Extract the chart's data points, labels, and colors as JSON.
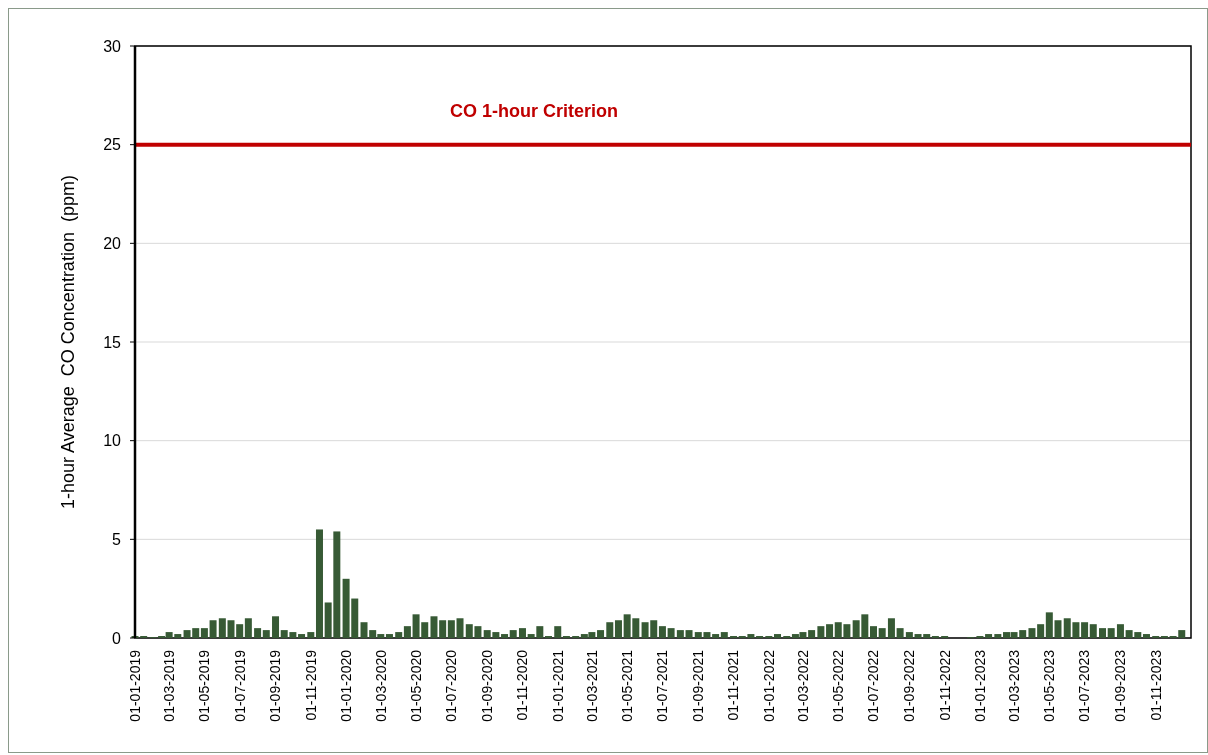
{
  "chart_data": {
    "type": "bar",
    "ylabel": "1-hour Average  CO Concentration  (ppm)",
    "x": [
      "2019-01-01",
      "2019-01-16",
      "2019-02-01",
      "2019-02-16",
      "2019-03-01",
      "2019-03-16",
      "2019-04-01",
      "2019-04-16",
      "2019-05-01",
      "2019-05-16",
      "2019-06-01",
      "2019-06-16",
      "2019-07-01",
      "2019-07-16",
      "2019-08-01",
      "2019-08-16",
      "2019-09-01",
      "2019-09-16",
      "2019-10-01",
      "2019-10-16",
      "2019-11-01",
      "2019-11-16",
      "2019-12-01",
      "2019-12-16",
      "2020-01-01",
      "2020-01-16",
      "2020-02-01",
      "2020-02-16",
      "2020-03-01",
      "2020-03-16",
      "2020-04-01",
      "2020-04-16",
      "2020-05-01",
      "2020-05-16",
      "2020-06-01",
      "2020-06-16",
      "2020-07-01",
      "2020-07-16",
      "2020-08-01",
      "2020-08-16",
      "2020-09-01",
      "2020-09-16",
      "2020-10-01",
      "2020-10-16",
      "2020-11-01",
      "2020-11-16",
      "2020-12-01",
      "2020-12-16",
      "2021-01-01",
      "2021-01-16",
      "2021-02-01",
      "2021-02-16",
      "2021-03-01",
      "2021-03-16",
      "2021-04-01",
      "2021-04-16",
      "2021-05-01",
      "2021-05-16",
      "2021-06-01",
      "2021-06-16",
      "2021-07-01",
      "2021-07-16",
      "2021-08-01",
      "2021-08-16",
      "2021-09-01",
      "2021-09-16",
      "2021-10-01",
      "2021-10-16",
      "2021-11-01",
      "2021-11-16",
      "2021-12-01",
      "2021-12-16",
      "2022-01-01",
      "2022-01-16",
      "2022-02-01",
      "2022-02-16",
      "2022-03-01",
      "2022-03-16",
      "2022-04-01",
      "2022-04-16",
      "2022-05-01",
      "2022-05-16",
      "2022-06-01",
      "2022-06-16",
      "2022-07-01",
      "2022-07-16",
      "2022-08-01",
      "2022-08-16",
      "2022-09-01",
      "2022-09-16",
      "2022-10-01",
      "2022-10-16",
      "2022-11-01",
      "2022-11-16",
      "2022-12-01",
      "2022-12-16",
      "2023-01-01",
      "2023-01-16",
      "2023-02-01",
      "2023-02-16",
      "2023-03-01",
      "2023-03-16",
      "2023-04-01",
      "2023-04-16",
      "2023-05-01",
      "2023-05-16",
      "2023-06-01",
      "2023-06-16",
      "2023-07-01",
      "2023-07-16",
      "2023-08-01",
      "2023-08-16",
      "2023-09-01",
      "2023-09-16",
      "2023-10-01",
      "2023-10-16",
      "2023-11-01",
      "2023-11-16",
      "2023-12-01",
      "2023-12-16"
    ],
    "series": [
      {
        "color": "#375a35",
        "values": [
          0.1,
          0.1,
          0.05,
          0.1,
          0.3,
          0.2,
          0.4,
          0.5,
          0.5,
          0.9,
          1.0,
          0.9,
          0.7,
          1.0,
          0.5,
          0.4,
          1.1,
          0.4,
          0.3,
          0.2,
          0.3,
          5.5,
          1.8,
          5.4,
          3.0,
          2.0,
          0.8,
          0.4,
          0.2,
          0.2,
          0.3,
          0.6,
          1.2,
          0.8,
          1.1,
          0.9,
          0.9,
          1.0,
          0.7,
          0.6,
          0.4,
          0.3,
          0.2,
          0.4,
          0.5,
          0.2,
          0.6,
          0.1,
          0.6,
          0.1,
          0.1,
          0.2,
          0.3,
          0.4,
          0.8,
          0.9,
          1.2,
          1.0,
          0.8,
          0.9,
          0.6,
          0.5,
          0.4,
          0.4,
          0.3,
          0.3,
          0.2,
          0.3,
          0.1,
          0.1,
          0.2,
          0.1,
          0.1,
          0.2,
          0.1,
          0.2,
          0.3,
          0.4,
          0.6,
          0.7,
          0.8,
          0.7,
          0.9,
          1.2,
          0.6,
          0.5,
          1.0,
          0.5,
          0.3,
          0.2,
          0.2,
          0.1,
          0.1,
          null,
          null,
          0.05,
          0.1,
          0.2,
          0.2,
          0.3,
          0.3,
          0.4,
          0.5,
          0.7,
          1.3,
          0.9,
          1.0,
          0.8,
          0.8,
          0.7,
          0.5,
          0.5,
          0.7,
          0.4,
          0.3,
          0.2,
          0.1,
          0.1,
          0.1,
          0.4
        ]
      }
    ],
    "xlim": [
      "2019-01-01",
      "2024-01-01"
    ],
    "xticks": [
      {
        "value": "2019-01-01",
        "label": "01-01-2019"
      },
      {
        "value": "2019-03-01",
        "label": "01-03-2019"
      },
      {
        "value": "2019-05-01",
        "label": "01-05-2019"
      },
      {
        "value": "2019-07-01",
        "label": "01-07-2019"
      },
      {
        "value": "2019-09-01",
        "label": "01-09-2019"
      },
      {
        "value": "2019-11-01",
        "label": "01-11-2019"
      },
      {
        "value": "2020-01-01",
        "label": "01-01-2020"
      },
      {
        "value": "2020-03-01",
        "label": "01-03-2020"
      },
      {
        "value": "2020-05-01",
        "label": "01-05-2020"
      },
      {
        "value": "2020-07-01",
        "label": "01-07-2020"
      },
      {
        "value": "2020-09-01",
        "label": "01-09-2020"
      },
      {
        "value": "2020-11-01",
        "label": "01-11-2020"
      },
      {
        "value": "2021-01-01",
        "label": "01-01-2021"
      },
      {
        "value": "2021-03-01",
        "label": "01-03-2021"
      },
      {
        "value": "2021-05-01",
        "label": "01-05-2021"
      },
      {
        "value": "2021-07-01",
        "label": "01-07-2021"
      },
      {
        "value": "2021-09-01",
        "label": "01-09-2021"
      },
      {
        "value": "2021-11-01",
        "label": "01-11-2021"
      },
      {
        "value": "2022-01-01",
        "label": "01-01-2022"
      },
      {
        "value": "2022-03-01",
        "label": "01-03-2022"
      },
      {
        "value": "2022-05-01",
        "label": "01-05-2022"
      },
      {
        "value": "2022-07-01",
        "label": "01-07-2022"
      },
      {
        "value": "2022-09-01",
        "label": "01-09-2022"
      },
      {
        "value": "2022-11-01",
        "label": "01-11-2022"
      },
      {
        "value": "2023-01-01",
        "label": "01-01-2023"
      },
      {
        "value": "2023-03-01",
        "label": "01-03-2023"
      },
      {
        "value": "2023-05-01",
        "label": "01-05-2023"
      },
      {
        "value": "2023-07-01",
        "label": "01-07-2023"
      },
      {
        "value": "2023-09-01",
        "label": "01-09-2023"
      },
      {
        "value": "2023-11-01",
        "label": "01-11-2023"
      }
    ],
    "ylim": [
      0,
      30
    ],
    "yticks": [
      0,
      5,
      10,
      15,
      20,
      25,
      30
    ],
    "grid": "y",
    "ref_lines": [
      {
        "axis": "y",
        "value": 25,
        "label": "CO 1-hour Criterion",
        "color": "#c00000"
      }
    ]
  }
}
